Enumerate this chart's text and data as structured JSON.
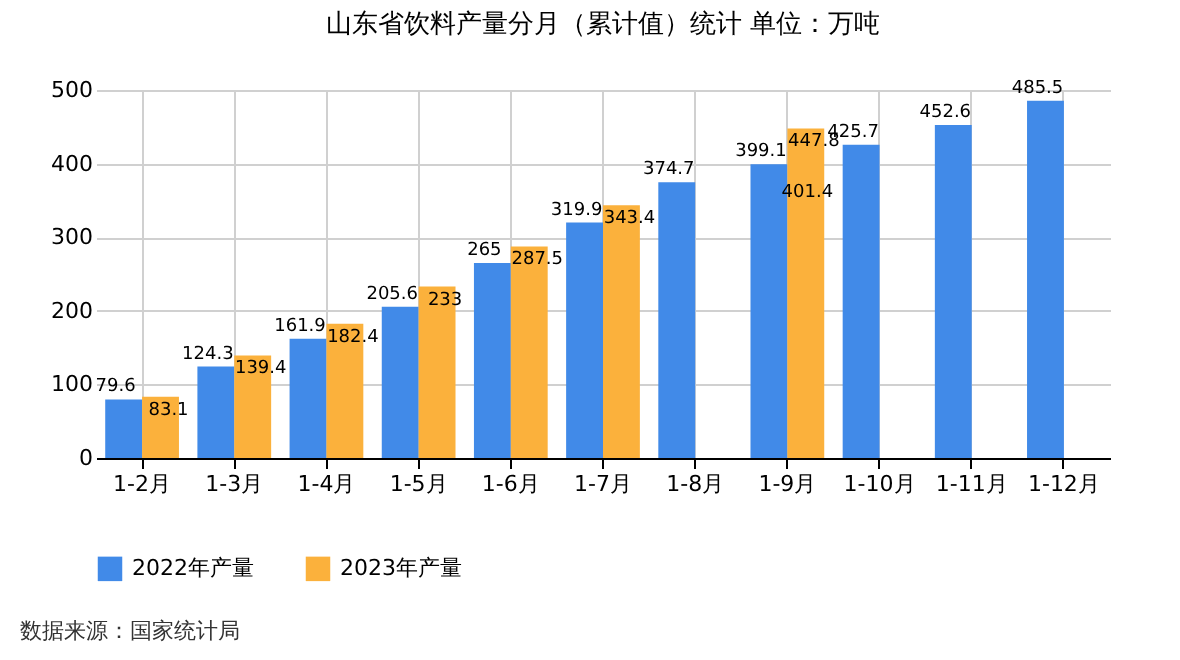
{
  "chart_data": {
    "type": "bar",
    "title": "山东省饮料产量分月（累计值）统计  单位：万吨",
    "categories": [
      "1-2月",
      "1-3月",
      "1-4月",
      "1-5月",
      "1-6月",
      "1-7月",
      "1-8月",
      "1-9月",
      "1-10月",
      "1-11月",
      "1-12月"
    ],
    "series": [
      {
        "name": "2022年产量",
        "color": "#418ae8",
        "values": [
          79.6,
          124.3,
          161.9,
          205.6,
          265,
          319.9,
          374.7,
          399.1,
          425.7,
          452.6,
          485.5
        ]
      },
      {
        "name": "2023年产量",
        "color": "#fbb13c",
        "values": [
          83.1,
          139.4,
          182.4,
          233,
          287.5,
          343.4,
          null,
          447.8,
          null,
          null,
          null
        ]
      }
    ],
    "ylim": [
      0,
      500
    ],
    "yticks": [
      0,
      100,
      200,
      300,
      400,
      500
    ],
    "grid": true,
    "legend": "bottom",
    "data_labels": true,
    "annotations": [
      {
        "text": "401.4",
        "x": "1-9月",
        "y": 401.4
      },
      "数据来源：国家统计局"
    ]
  }
}
